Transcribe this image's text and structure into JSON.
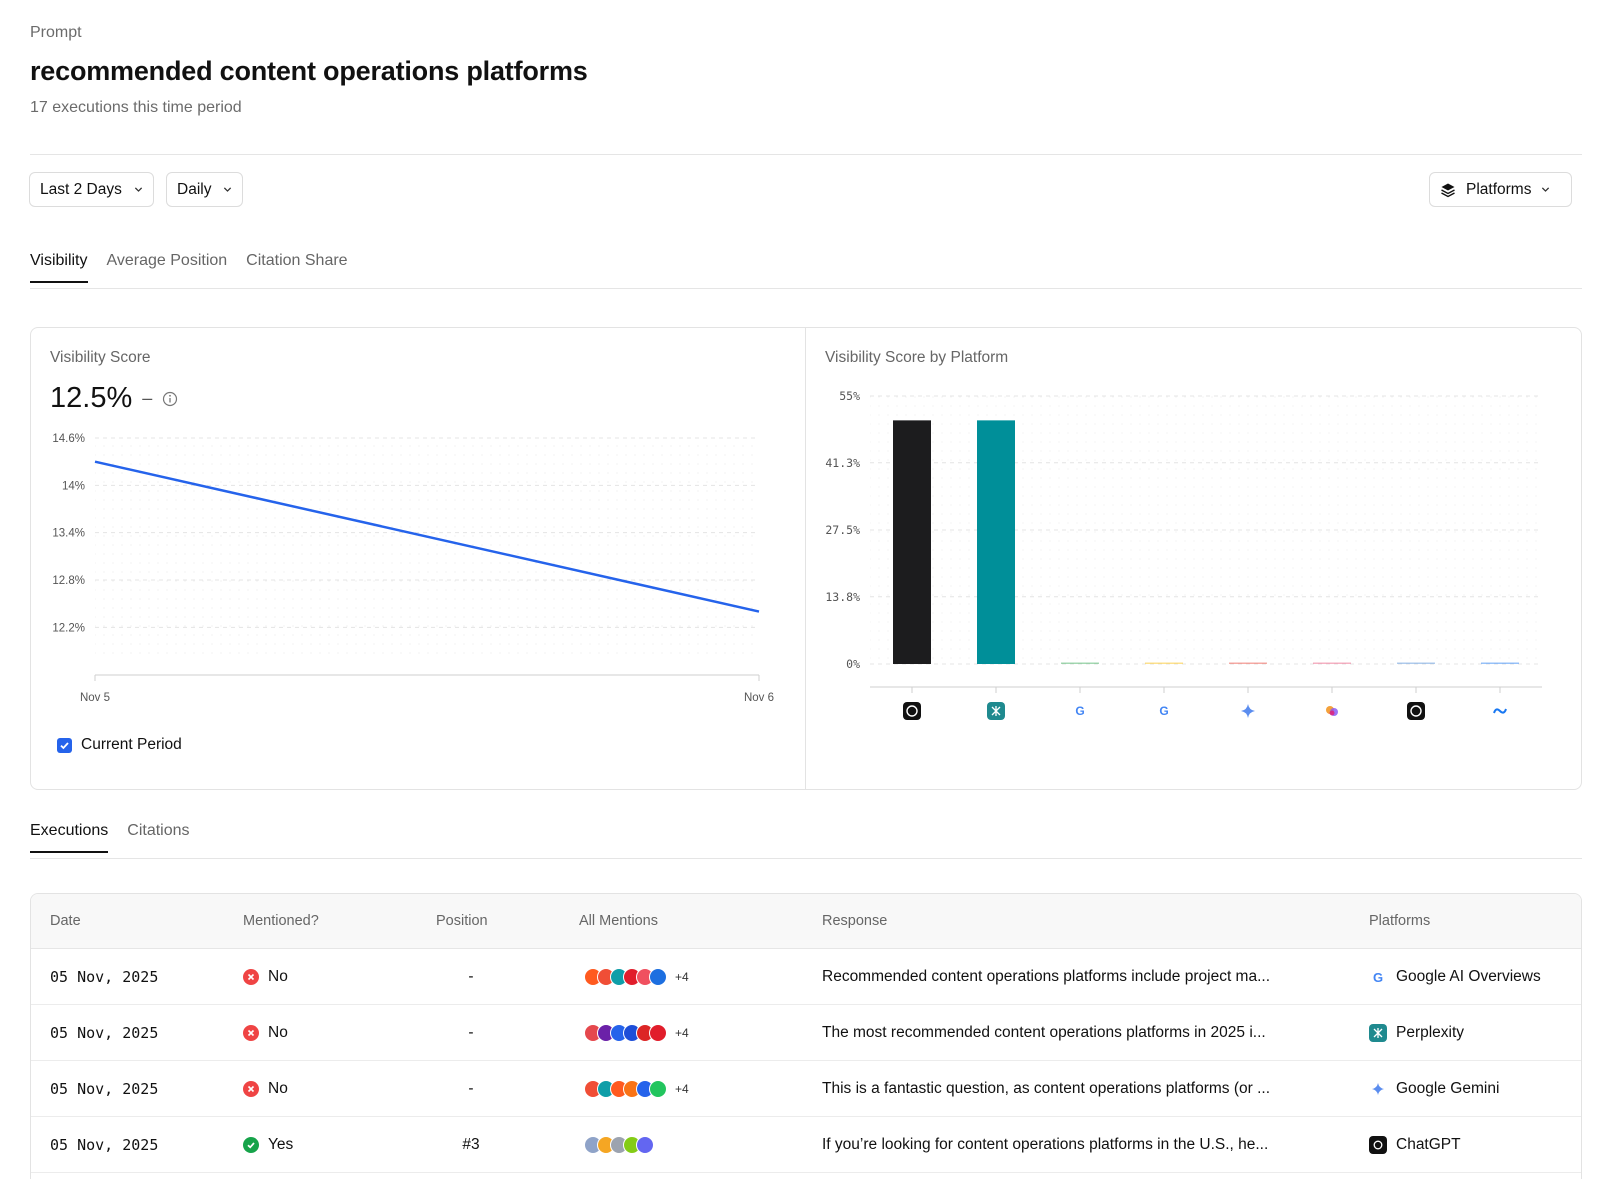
{
  "header": {
    "eyebrow": "Prompt",
    "title": "recommended content operations platforms",
    "subtitle": "17 executions this time period"
  },
  "filters": {
    "range": "Last 2 Days",
    "interval": "Daily",
    "platforms": "Platforms"
  },
  "metric_tabs": [
    "Visibility",
    "Average Position",
    "Citation Share"
  ],
  "visibility_card": {
    "title": "Visibility Score",
    "score": "12.5%",
    "change": "–",
    "legend": "Current Period"
  },
  "platform_card": {
    "title": "Visibility Score by Platform"
  },
  "chart_data": [
    {
      "type": "line",
      "title": "Visibility Score",
      "x": [
        "Nov 5",
        "Nov 6"
      ],
      "y_ticks": [
        "14.6%",
        "14%",
        "13.4%",
        "12.8%",
        "12.2%"
      ],
      "ylim": [
        11.9,
        14.6
      ],
      "series": [
        {
          "name": "Current Period",
          "values": [
            14.3,
            12.4
          ],
          "color": "#2563eb"
        }
      ],
      "grid": true
    },
    {
      "type": "bar",
      "title": "Visibility Score by Platform",
      "categories": [
        "ChatGPT",
        "Perplexity",
        "Google AI Overviews",
        "Google AI Mode",
        "Google Gemini",
        "Microsoft Copilot",
        "Grok",
        "Meta AI"
      ],
      "values": [
        50,
        50,
        0,
        0,
        0,
        0,
        0,
        0
      ],
      "colors": [
        "#1c1c1e",
        "#008f99",
        "#34a853",
        "#fbbc05",
        "#ea4335",
        "#e8557a",
        "#4e8bd6",
        "#1877f2"
      ],
      "icons": [
        "chatgpt-icon",
        "perplexity-icon",
        "google-icon",
        "google-icon",
        "gemini-icon",
        "copilot-icon",
        "grok-icon",
        "meta-icon"
      ],
      "y_ticks": [
        "55%",
        "41.3%",
        "27.5%",
        "13.8%",
        "0%"
      ],
      "ylim": [
        0,
        55
      ],
      "grid": true
    }
  ],
  "bottom_tabs": [
    "Executions",
    "Citations"
  ],
  "table": {
    "columns": [
      "Date",
      "Mentioned?",
      "Position",
      "All Mentions",
      "Response",
      "Platforms"
    ],
    "rows": [
      {
        "date": "05 Nov, 2025",
        "mentioned": "No",
        "mentioned_color": "#ef4444",
        "position": "-",
        "mention_colors": [
          "#ff5a1f",
          "#f04e36",
          "#0f9ea8",
          "#e11d2b",
          "#f0505f",
          "#1d6fe0"
        ],
        "more": "+4",
        "response": "Recommended content operations platforms include project ma...",
        "platform": "Google AI Overviews",
        "platform_icon": "google-icon"
      },
      {
        "date": "05 Nov, 2025",
        "mentioned": "No",
        "mentioned_color": "#ef4444",
        "position": "-",
        "mention_colors": [
          "#e5484d",
          "#6b21a8",
          "#2563eb",
          "#1d4ed8",
          "#dc2626",
          "#e11d2b"
        ],
        "more": "+4",
        "response": "The most recommended content operations platforms in 2025 i...",
        "platform": "Perplexity",
        "platform_icon": "perplexity-icon"
      },
      {
        "date": "05 Nov, 2025",
        "mentioned": "No",
        "mentioned_color": "#ef4444",
        "position": "-",
        "mention_colors": [
          "#f04e36",
          "#0f9ea8",
          "#ff5a1f",
          "#f97316",
          "#2563eb",
          "#22c55e"
        ],
        "more": "+4",
        "response": "This is a fantastic question, as content operations platforms (or ...",
        "platform": "Google Gemini",
        "platform_icon": "gemini-icon"
      },
      {
        "date": "05 Nov, 2025",
        "mentioned": "Yes",
        "mentioned_color": "#16a34a",
        "position": "#3",
        "mention_colors": [
          "#8fa3c8",
          "#f5a623",
          "#9ca3af",
          "#84cc16",
          "#6366f1"
        ],
        "more": "",
        "response": "If you’re looking for content operations platforms in the U.S., he...",
        "platform": "ChatGPT",
        "platform_icon": "chatgpt-icon"
      }
    ]
  }
}
